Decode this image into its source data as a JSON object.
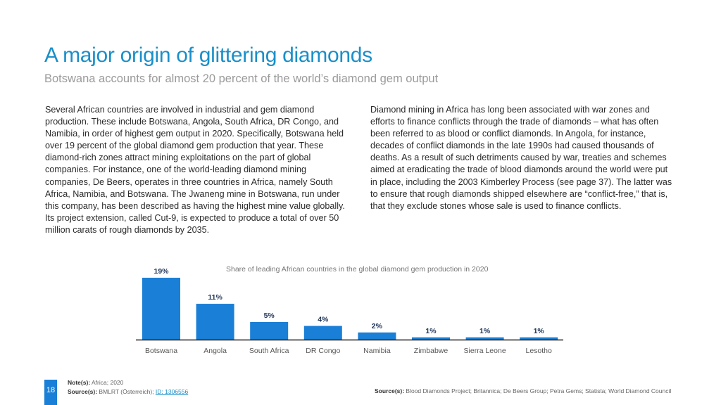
{
  "header": {
    "title": "A major origin of glittering diamonds",
    "subtitle": "Botswana accounts for almost 20 percent of the world’s diamond gem output"
  },
  "body": {
    "left_paragraph": "Several African countries are involved in industrial and gem diamond production. These include Botswana, Angola, South Africa, DR Congo, and Namibia, in order of highest gem output in 2020. Specifically, Botswana held over 19 percent of the global diamond gem production that year. These diamond-rich zones attract mining exploitations on the part of global companies. For instance, one of the world-leading diamond mining companies, De Beers, operates in three countries in Africa, namely South Africa, Namibia, and Botswana. The Jwaneng mine in Botswana, run under this company, has been described as having the highest mine value globally. Its project extension, called Cut-9, is expected to produce a total of over 50 million carats of rough diamonds by 2035.",
    "right_paragraph": "Diamond mining in Africa has long been associated with war zones and efforts to finance conflicts through the trade of diamonds – what has often been referred to as blood or conflict diamonds. In Angola, for instance, decades of conflict diamonds in the late 1990s had caused thousands of deaths. As a result of such detriments caused by war, treaties and schemes aimed at eradicating the trade of blood diamonds around the world were put in place, including the 2003 Kimberley Process (see page 37). The latter was to ensure that rough diamonds shipped elsewhere are “conflict-free,” that is, that they exclude stones whose sale is used to finance conflicts."
  },
  "chart_data": {
    "type": "bar",
    "title": "Share of leading African countries in the global diamond gem production in 2020",
    "categories": [
      "Botswana",
      "Angola",
      "South Africa",
      "DR Congo",
      "Namibia",
      "Zimbabwe",
      "Sierra Leone",
      "Lesotho"
    ],
    "values": [
      19,
      11,
      5.4,
      4.2,
      2.2,
      0.7,
      0.7,
      0.7
    ],
    "labels": [
      "19%",
      "11%",
      "5%",
      "4%",
      "2%",
      "1%",
      "1%",
      "1%"
    ],
    "xlabel": "",
    "ylabel": "",
    "ylim": [
      0,
      19
    ],
    "grid": false,
    "bar_color": "#1a7fd6"
  },
  "footer": {
    "page_number": "18",
    "note_label": "Note(s):",
    "note_text": "Africa; 2020",
    "source_label": "Source(s):",
    "source_text": "BMLRT (Österreich);",
    "source_link": "ID: 1306556",
    "right_source_label": "Source(s):",
    "right_source_text": "Blood Diamonds Project; Britannica; De Beers Group; Petra Gems; Statista; World Diamond Council"
  }
}
